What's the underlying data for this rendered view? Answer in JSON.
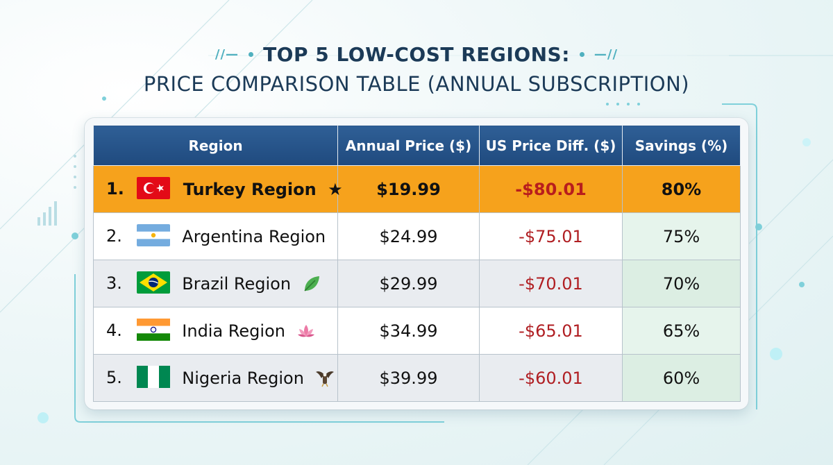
{
  "title": {
    "line1": "TOP 5 LOW-COST REGIONS:",
    "line2": "PRICE COMPARISON TABLE (ANNUAL SUBSCRIPTION)"
  },
  "colors": {
    "header_bg": "#1f4a7e",
    "highlight_row": "#f6a21c",
    "negative_text": "#b01e22",
    "savings_bg": "#e6f4ec",
    "title_text": "#1b3a57"
  },
  "chart_data": {
    "type": "table",
    "columns": [
      "Region",
      "Annual Price ($)",
      "US Price Diff. ($)",
      "Savings (%)"
    ],
    "rows": [
      {
        "rank": "1.",
        "flag": "turkey-flag-icon",
        "region": "Turkey Region",
        "suffix": "star-icon",
        "price": "$19.99",
        "diff": "-$80.01",
        "savings": "80%",
        "highlighted": true
      },
      {
        "rank": "2.",
        "flag": "argentina-flag-icon",
        "region": "Argentina Region",
        "suffix": "",
        "price": "$24.99",
        "diff": "-$75.01",
        "savings": "75%",
        "highlighted": false
      },
      {
        "rank": "3.",
        "flag": "brazil-flag-icon",
        "region": "Brazil Region",
        "suffix": "leaf-icon",
        "price": "$29.99",
        "diff": "-$70.01",
        "savings": "70%",
        "highlighted": false
      },
      {
        "rank": "4.",
        "flag": "india-flag-icon",
        "region": "India Region",
        "suffix": "lotus-icon",
        "price": "$34.99",
        "diff": "-$65.01",
        "savings": "65%",
        "highlighted": false
      },
      {
        "rank": "5.",
        "flag": "nigeria-flag-icon",
        "region": "Nigeria Region",
        "suffix": "eagle-icon",
        "price": "$39.99",
        "diff": "-$60.01",
        "savings": "60%",
        "highlighted": false
      }
    ]
  }
}
